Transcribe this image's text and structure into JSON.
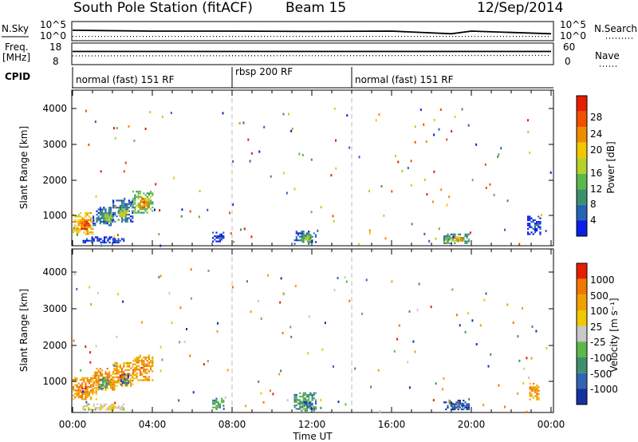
{
  "header": {
    "station": "South Pole Station (fitACF)",
    "beam": "Beam 15",
    "date": "12/Sep/2014"
  },
  "nsky_panel": {
    "left_label": "N.Sky",
    "right_label": "N.Search",
    "left_ticks": [
      "10^5",
      "10^0"
    ],
    "right_ticks": [
      "10^5",
      "10^0"
    ]
  },
  "freq_panel": {
    "left_label_1": "Freq.",
    "left_label_2": "[MHz]",
    "right_label": "Nave",
    "left_ticks": [
      "18",
      "8"
    ],
    "right_ticks": [
      "60",
      "0"
    ]
  },
  "cpid_panel": {
    "label": "CPID",
    "segments": [
      {
        "label": "normal (fast) 151 RF",
        "start": 0,
        "end": 8
      },
      {
        "label": "rbsp 200 RF",
        "start": 8,
        "end": 14
      },
      {
        "label": "normal (fast) 151 RF",
        "start": 14,
        "end": 24
      }
    ]
  },
  "x_axis": {
    "label": "Time UT",
    "ticks": [
      "00:00",
      "04:00",
      "08:00",
      "12:00",
      "16:00",
      "20:00",
      "00:00"
    ],
    "range_hours": [
      0,
      24
    ]
  },
  "power_panel": {
    "ylabel": "Slant Range [km]",
    "yticks": [
      "1000",
      "2000",
      "3000",
      "4000"
    ],
    "colorbar_label": "Power [dB]",
    "colorbar_ticks": [
      "4",
      "8",
      "12",
      "16",
      "20",
      "24",
      "28"
    ],
    "colors": [
      "#0a1ee6",
      "#2864b4",
      "#3c9070",
      "#5cb84a",
      "#b4d22a",
      "#f0c800",
      "#f08c00",
      "#f05000",
      "#e61e00"
    ]
  },
  "velocity_panel": {
    "ylabel": "Slant Range [km]",
    "yticks": [
      "1000",
      "2000",
      "3000",
      "4000"
    ],
    "colorbar_label": "Velocity [m s⁻¹]",
    "colorbar_ticks": [
      "1000",
      "500",
      "100",
      "25",
      "-25",
      "-100",
      "-500",
      "-1000"
    ],
    "colors": [
      "#1432a0",
      "#3264b4",
      "#3c9070",
      "#5cb84a",
      "#c8c8c8",
      "#f0c800",
      "#f0a000",
      "#f07800",
      "#e61e00"
    ]
  },
  "chart_data": {
    "type": "heatmap",
    "x_unit": "hours UT",
    "y_unit": "slant range km",
    "yrange": [
      180,
      4500
    ],
    "power_regions": [
      {
        "x": [
          0.0,
          1.0
        ],
        "y": [
          500,
          1100
        ],
        "level": 6
      },
      {
        "x": [
          0.4,
          0.9
        ],
        "y": [
          600,
          900
        ],
        "level": 8
      },
      {
        "x": [
          1.0,
          2.0
        ],
        "y": [
          750,
          1250
        ],
        "level": 2
      },
      {
        "x": [
          1.6,
          2.0
        ],
        "y": [
          850,
          1100
        ],
        "level": 4
      },
      {
        "x": [
          2.0,
          3.0
        ],
        "y": [
          850,
          1450
        ],
        "level": 2
      },
      {
        "x": [
          2.3,
          2.7
        ],
        "y": [
          950,
          1200
        ],
        "level": 5
      },
      {
        "x": [
          3.0,
          4.0
        ],
        "y": [
          1100,
          1700
        ],
        "level": 4
      },
      {
        "x": [
          3.3,
          3.8
        ],
        "y": [
          1200,
          1500
        ],
        "level": 7
      },
      {
        "x": [
          0.5,
          2.6
        ],
        "y": [
          250,
          420
        ],
        "level": 1
      },
      {
        "x": [
          11.1,
          12.2
        ],
        "y": [
          230,
          580
        ],
        "level": 2
      },
      {
        "x": [
          11.4,
          12.0
        ],
        "y": [
          300,
          450
        ],
        "level": 4
      },
      {
        "x": [
          18.6,
          19.9
        ],
        "y": [
          230,
          500
        ],
        "level": 3
      },
      {
        "x": [
          19.0,
          19.6
        ],
        "y": [
          280,
          420
        ],
        "level": 6
      },
      {
        "x": [
          7.0,
          7.6
        ],
        "y": [
          260,
          550
        ],
        "level": 1
      },
      {
        "x": [
          22.8,
          23.5
        ],
        "y": [
          500,
          1000
        ],
        "level": 1
      }
    ],
    "velocity_regions": [
      {
        "x": [
          0.0,
          1.2
        ],
        "y": [
          500,
          1100
        ],
        "level": 7
      },
      {
        "x": [
          1.0,
          2.1
        ],
        "y": [
          750,
          1350
        ],
        "level": 7
      },
      {
        "x": [
          2.0,
          3.0
        ],
        "y": [
          850,
          1500
        ],
        "level": 7
      },
      {
        "x": [
          3.0,
          4.0
        ],
        "y": [
          1000,
          1700
        ],
        "level": 7
      },
      {
        "x": [
          1.3,
          1.8
        ],
        "y": [
          800,
          1100
        ],
        "level": 3
      },
      {
        "x": [
          2.4,
          2.8
        ],
        "y": [
          900,
          1200
        ],
        "level": 2
      },
      {
        "x": [
          0.5,
          2.6
        ],
        "y": [
          230,
          400
        ],
        "level": 5
      },
      {
        "x": [
          11.1,
          12.2
        ],
        "y": [
          230,
          700
        ],
        "level": 3
      },
      {
        "x": [
          11.5,
          12.0
        ],
        "y": [
          280,
          450
        ],
        "level": 2
      },
      {
        "x": [
          18.6,
          19.9
        ],
        "y": [
          230,
          500
        ],
        "level": 1
      },
      {
        "x": [
          19.0,
          19.6
        ],
        "y": [
          280,
          420
        ],
        "level": 2
      },
      {
        "x": [
          7.0,
          7.6
        ],
        "y": [
          260,
          550
        ],
        "level": 3
      },
      {
        "x": [
          22.9,
          23.4
        ],
        "y": [
          500,
          950
        ],
        "level": 7
      }
    ],
    "nsky_trace": {
      "x": [
        0,
        4,
        8,
        12,
        16,
        19,
        20,
        24
      ],
      "y": [
        0.55,
        0.5,
        0.5,
        0.48,
        0.5,
        0.35,
        0.5,
        0.35
      ]
    },
    "nsearch_trace": {
      "x": [
        0,
        24
      ],
      "y": [
        0.2,
        0.2
      ]
    },
    "freq_trace": {
      "x": [
        0,
        24
      ],
      "y": [
        0.62,
        0.62
      ]
    },
    "nave_trace": {
      "x": [
        0,
        24
      ],
      "y": [
        0.4,
        0.42
      ]
    }
  }
}
